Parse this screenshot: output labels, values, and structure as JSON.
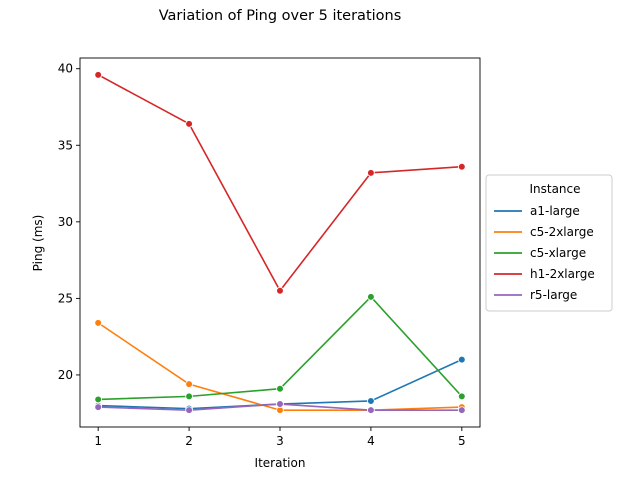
{
  "chart_data": {
    "type": "line",
    "title": "Variation of Ping over 5 iterations",
    "xlabel": "Iteration",
    "ylabel": "Ping (ms)",
    "x": [
      1,
      2,
      3,
      4,
      5
    ],
    "xlim": [
      0.8,
      5.2
    ],
    "ylim": [
      16.6,
      40.7
    ],
    "yticks": [
      20,
      25,
      30,
      35,
      40
    ],
    "xticks": [
      1,
      2,
      3,
      4,
      5
    ],
    "grid": false,
    "legend": {
      "title": "Instance",
      "placement": "outside-right"
    },
    "series": [
      {
        "name": "a1-large",
        "color": "#1f77b4",
        "values": [
          18.0,
          17.8,
          18.1,
          18.3,
          21.0
        ]
      },
      {
        "name": "c5-2xlarge",
        "color": "#ff7f0e",
        "values": [
          23.4,
          19.4,
          17.7,
          17.7,
          17.9
        ]
      },
      {
        "name": "c5-xlarge",
        "color": "#2ca02c",
        "values": [
          18.4,
          18.6,
          19.1,
          25.1,
          18.6
        ]
      },
      {
        "name": "h1-2xlarge",
        "color": "#d62728",
        "values": [
          39.6,
          36.4,
          25.5,
          33.2,
          33.6
        ]
      },
      {
        "name": "r5-large",
        "color": "#9467bd",
        "values": [
          17.9,
          17.7,
          18.1,
          17.7,
          17.7
        ]
      }
    ]
  }
}
